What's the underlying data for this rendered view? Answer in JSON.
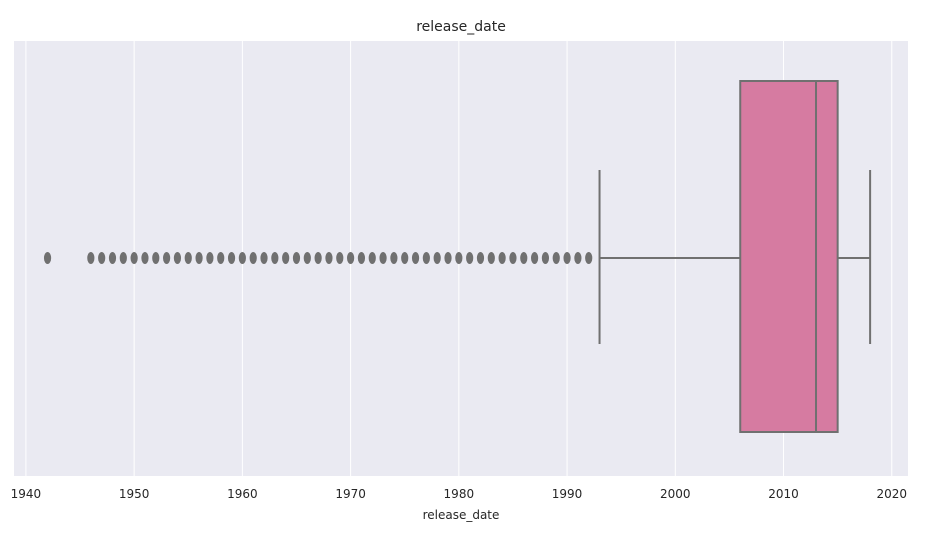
{
  "chart_data": {
    "type": "box",
    "title": "release_date",
    "xlabel": "release_date",
    "ylabel": "",
    "xlim": [
      1938.9,
      2021.5
    ],
    "x_ticks": [
      1940,
      1950,
      1960,
      1970,
      1980,
      1990,
      2000,
      2010,
      2020
    ],
    "grid": true,
    "orientation": "horizontal",
    "box": {
      "whisker_low": 1993,
      "q1": 2006,
      "median": 2013,
      "q3": 2015,
      "whisker_high": 2018
    },
    "outliers": [
      1942,
      1946,
      1947,
      1948,
      1949,
      1950,
      1951,
      1952,
      1953,
      1954,
      1955,
      1956,
      1957,
      1958,
      1959,
      1960,
      1961,
      1962,
      1963,
      1964,
      1965,
      1966,
      1967,
      1968,
      1969,
      1970,
      1971,
      1972,
      1973,
      1974,
      1975,
      1976,
      1977,
      1978,
      1979,
      1980,
      1981,
      1982,
      1983,
      1984,
      1985,
      1986,
      1987,
      1988,
      1989,
      1990,
      1991,
      1992
    ],
    "colors": {
      "box_fill": "#d67ba1",
      "line": "#707070",
      "plot_bg": "#eaeaf2",
      "grid": "#ffffff"
    }
  }
}
